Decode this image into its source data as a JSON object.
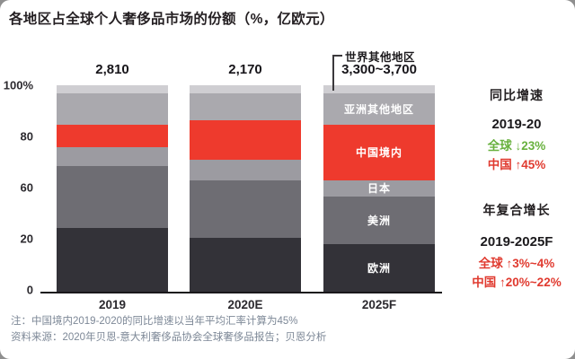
{
  "title": "各地区占全球个人奢侈品市场的份额（%，亿欧元）",
  "chart_data": {
    "type": "bar",
    "stacked": true,
    "unit": "% share of bar total",
    "categories": [
      "2019",
      "2020E",
      "2025F"
    ],
    "totals": [
      "2,810",
      "2,170",
      "3,300~3,700"
    ],
    "series": [
      {
        "name": "欧洲",
        "slug": "europe",
        "color": "#333238",
        "labeled": true,
        "values": [
          31,
          26,
          23
        ]
      },
      {
        "name": "美洲",
        "slug": "americas",
        "color": "#6e6d73",
        "labeled": true,
        "values": [
          30,
          28,
          23
        ]
      },
      {
        "name": "日本",
        "slug": "japan",
        "color": "#9c9ba1",
        "labeled": true,
        "values": [
          9,
          10,
          8
        ]
      },
      {
        "name": "中国境内",
        "slug": "china-mainland",
        "color": "#ee3a2d",
        "labeled": true,
        "values": [
          11,
          19,
          27
        ]
      },
      {
        "name": "亚洲其他地区",
        "slug": "rest-of-asia",
        "color": "#aaa9ae",
        "labeled": true,
        "values": [
          15,
          13,
          15
        ]
      },
      {
        "name": "世界其他地区",
        "slug": "rest-of-world",
        "color": "#cfced2",
        "labeled": false,
        "values": [
          4,
          4,
          4
        ]
      }
    ],
    "in_bar_labels_category": "2025F",
    "y_ticks": [
      "100%",
      "80",
      "60",
      "20",
      "0"
    ],
    "ylim": [
      0,
      100
    ],
    "grid": false,
    "legend_position": "in-bar annotations",
    "annotation": {
      "label": "世界其他地区",
      "target": "top segment of 2025F bar"
    }
  },
  "right_panel": {
    "yoy": {
      "heading": "同比增速",
      "period": "2019-20",
      "global": {
        "label": "全球",
        "arrow": "↓",
        "value": "23%",
        "color": "#68b13e"
      },
      "china": {
        "label": "中国",
        "arrow": "↑",
        "value": "45%",
        "color": "#e03a2f"
      }
    },
    "cagr": {
      "heading": "年复合增长",
      "period": "2019-2025F",
      "global": {
        "label": "全球",
        "arrow": "↑",
        "value": "3%~4%",
        "color": "#e03a2f"
      },
      "china": {
        "label": "中国",
        "arrow": "↑",
        "value": "20%~22%",
        "color": "#e03a2f"
      }
    }
  },
  "notes": {
    "line1": "注：中国境内2019-2020的同比增速以当年平均汇率计算为45%",
    "line2": "资料来源：2020年贝恩-意大利奢侈品协会全球奢侈品报告；贝恩分析"
  },
  "colors": {
    "china_red": "#ee3a2d",
    "text_green": "#68b13e",
    "text_red": "#e03a2f",
    "axis": "#1a181b"
  }
}
